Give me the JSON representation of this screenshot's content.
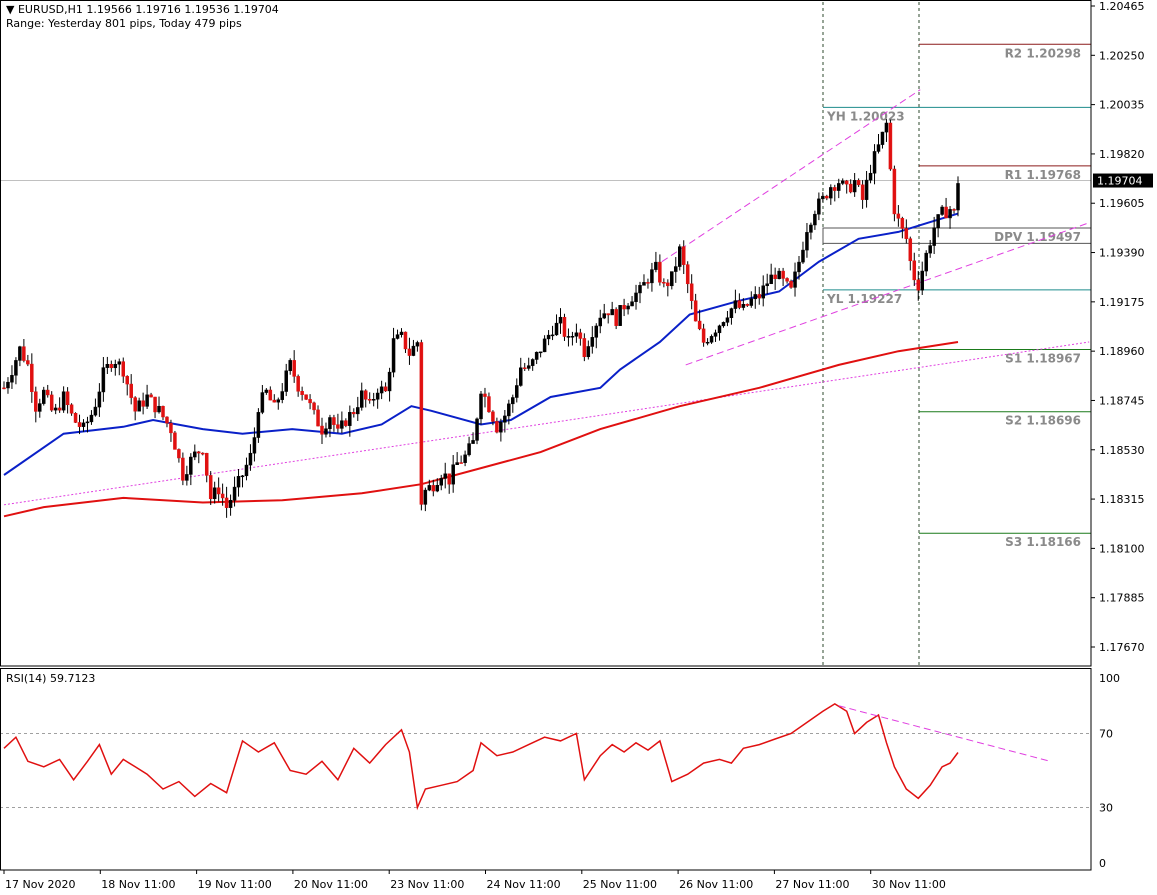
{
  "header": {
    "symbol_line": "▼ EURUSD,H1  1.19566 1.19716 1.19536 1.19704",
    "range_line": "Range: Yesterday 801 pips, Today 479 pips"
  },
  "rsi_label": "RSI(14) 59.7123",
  "chart_data": {
    "type": "candlestick",
    "price_axis": {
      "ticks": [
        "1.20465",
        "1.20250",
        "1.20035",
        "1.19820",
        "1.19605",
        "1.19390",
        "1.19175",
        "1.18960",
        "1.18745",
        "1.18530",
        "1.18315",
        "1.18100",
        "1.17885",
        "1.17670"
      ],
      "current_price": "1.19704",
      "ylim": [
        1.1755,
        1.205
      ]
    },
    "time_axis": {
      "labels": [
        "17 Nov 2020",
        "18 Nov 11:00",
        "19 Nov 11:00",
        "20 Nov 11:00",
        "23 Nov 11:00",
        "24 Nov 11:00",
        "25 Nov 11:00",
        "26 Nov 11:00",
        "27 Nov 11:00",
        "30 Nov 11:00"
      ]
    },
    "pivot_levels": [
      {
        "label": "R2 1.20298",
        "value": 1.20298,
        "color": "#8b1a1a"
      },
      {
        "label": "YH 1.20023",
        "value": 1.20023,
        "color": "#1e8c8c"
      },
      {
        "label": "R1 1.19768",
        "value": 1.19768,
        "color": "#8b1a1a"
      },
      {
        "label": "DPV 1.19497",
        "value": 1.19497,
        "color": "#b8a000"
      },
      {
        "label": "YL 1.19227",
        "value": 1.19227,
        "color": "#1e8c8c"
      },
      {
        "label": "S1 1.18967",
        "value": 1.18967,
        "color": "#1a7a1a"
      },
      {
        "label": "S2 1.18696",
        "value": 1.18696,
        "color": "#1a7a1a"
      },
      {
        "label": "S3 1.18166",
        "value": 1.18166,
        "color": "#1a7a1a"
      }
    ],
    "close_path": [
      [
        0,
        1.188
      ],
      [
        4,
        1.1888
      ],
      [
        8,
        1.1897
      ],
      [
        12,
        1.189
      ],
      [
        16,
        1.1872
      ],
      [
        20,
        1.1878
      ],
      [
        25,
        1.1868
      ],
      [
        30,
        1.1876
      ],
      [
        35,
        1.1866
      ],
      [
        40,
        1.1862
      ],
      [
        45,
        1.187
      ],
      [
        50,
        1.1886
      ],
      [
        55,
        1.1893
      ],
      [
        60,
        1.1888
      ],
      [
        66,
        1.187
      ],
      [
        72,
        1.1876
      ],
      [
        78,
        1.187
      ],
      [
        84,
        1.1862
      ],
      [
        90,
        1.1842
      ],
      [
        95,
        1.185
      ],
      [
        100,
        1.1854
      ],
      [
        104,
        1.1832
      ],
      [
        108,
        1.1836
      ],
      [
        112,
        1.1828
      ],
      [
        116,
        1.1835
      ],
      [
        120,
        1.1842
      ],
      [
        125,
        1.1852
      ],
      [
        128,
        1.1872
      ],
      [
        132,
        1.1878
      ],
      [
        136,
        1.1871
      ],
      [
        140,
        1.188
      ],
      [
        144,
        1.189
      ],
      [
        148,
        1.1881
      ],
      [
        152,
        1.1876
      ],
      [
        156,
        1.1868
      ],
      [
        160,
        1.1862
      ],
      [
        164,
        1.1868
      ],
      [
        168,
        1.186
      ],
      [
        172,
        1.1866
      ],
      [
        176,
        1.187
      ],
      [
        180,
        1.1877
      ],
      [
        184,
        1.1872
      ],
      [
        188,
        1.188
      ],
      [
        192,
        1.1878
      ],
      [
        196,
        1.19
      ],
      [
        200,
        1.1902
      ],
      [
        204,
        1.1895
      ],
      [
        208,
        1.19
      ],
      [
        209,
        1.1828
      ],
      [
        212,
        1.1835
      ],
      [
        216,
        1.1838
      ],
      [
        220,
        1.1843
      ],
      [
        224,
        1.184
      ],
      [
        228,
        1.1847
      ],
      [
        232,
        1.185
      ],
      [
        236,
        1.1856
      ],
      [
        240,
        1.188
      ],
      [
        244,
        1.1872
      ],
      [
        248,
        1.1863
      ],
      [
        252,
        1.1868
      ],
      [
        256,
        1.1876
      ],
      [
        260,
        1.1889
      ],
      [
        264,
        1.1888
      ],
      [
        268,
        1.1894
      ],
      [
        272,
        1.19
      ],
      [
        276,
        1.1906
      ],
      [
        280,
        1.1908
      ],
      [
        284,
        1.19
      ],
      [
        288,
        1.1906
      ],
      [
        292,
        1.1896
      ],
      [
        296,
        1.1905
      ],
      [
        300,
        1.1912
      ],
      [
        304,
        1.1914
      ],
      [
        308,
        1.191
      ],
      [
        312,
        1.1916
      ],
      [
        316,
        1.192
      ],
      [
        320,
        1.1922
      ],
      [
        324,
        1.1928
      ],
      [
        328,
        1.1932
      ],
      [
        332,
        1.1924
      ],
      [
        336,
        1.1928
      ],
      [
        340,
        1.194
      ],
      [
        344,
        1.1925
      ],
      [
        348,
        1.1908
      ],
      [
        352,
        1.19
      ],
      [
        356,
        1.1904
      ],
      [
        360,
        1.1908
      ],
      [
        364,
        1.1913
      ],
      [
        368,
        1.1916
      ],
      [
        372,
        1.1914
      ],
      [
        376,
        1.1918
      ],
      [
        380,
        1.192
      ],
      [
        384,
        1.1926
      ],
      [
        388,
        1.193
      ],
      [
        392,
        1.1926
      ],
      [
        396,
        1.1922
      ],
      [
        400,
        1.1935
      ],
      [
        404,
        1.195
      ],
      [
        408,
        1.1958
      ],
      [
        412,
        1.1962
      ],
      [
        416,
        1.1968
      ],
      [
        420,
        1.197
      ],
      [
        424,
        1.1966
      ],
      [
        428,
        1.197
      ],
      [
        432,
        1.1962
      ],
      [
        436,
        1.1976
      ],
      [
        440,
        1.1985
      ],
      [
        444,
        1.1995
      ],
      [
        446,
        1.1975
      ],
      [
        448,
        1.1958
      ],
      [
        451,
        1.195
      ],
      [
        454,
        1.1945
      ],
      [
        457,
        1.193
      ],
      [
        460,
        1.1925
      ],
      [
        464,
        1.1938
      ],
      [
        468,
        1.195
      ],
      [
        472,
        1.1956
      ],
      [
        476,
        1.1958
      ],
      [
        478,
        1.1956
      ],
      [
        480,
        1.19704
      ]
    ],
    "moving_averages": [
      {
        "color": "#0a20c8",
        "path": [
          [
            0,
            1.1842
          ],
          [
            30,
            1.186
          ],
          [
            60,
            1.1863
          ],
          [
            75,
            1.1866
          ],
          [
            100,
            1.1862
          ],
          [
            120,
            1.186
          ],
          [
            145,
            1.1862
          ],
          [
            170,
            1.186
          ],
          [
            190,
            1.1864
          ],
          [
            205,
            1.1872
          ],
          [
            215,
            1.187
          ],
          [
            240,
            1.1864
          ],
          [
            255,
            1.1866
          ],
          [
            275,
            1.1876
          ],
          [
            300,
            1.188
          ],
          [
            310,
            1.1888
          ],
          [
            330,
            1.19
          ],
          [
            345,
            1.1912
          ],
          [
            370,
            1.1918
          ],
          [
            390,
            1.1922
          ],
          [
            410,
            1.1935
          ],
          [
            430,
            1.1945
          ],
          [
            450,
            1.1948
          ],
          [
            465,
            1.1952
          ],
          [
            480,
            1.1956
          ]
        ]
      },
      {
        "color": "#e01010",
        "path": [
          [
            0,
            1.1824
          ],
          [
            20,
            1.1828
          ],
          [
            60,
            1.1832
          ],
          [
            100,
            1.183
          ],
          [
            140,
            1.1831
          ],
          [
            180,
            1.1834
          ],
          [
            210,
            1.1838
          ],
          [
            240,
            1.1845
          ],
          [
            270,
            1.1852
          ],
          [
            300,
            1.1862
          ],
          [
            340,
            1.1872
          ],
          [
            380,
            1.188
          ],
          [
            420,
            1.189
          ],
          [
            450,
            1.1896
          ],
          [
            480,
            1.19
          ]
        ]
      }
    ],
    "rsi": {
      "name": "RSI(14)",
      "value": 59.7123,
      "levels": [
        30,
        70
      ],
      "ticks": [
        "100",
        "70",
        "30",
        "0"
      ],
      "values": [
        [
          0,
          62
        ],
        [
          6,
          68
        ],
        [
          12,
          55
        ],
        [
          20,
          52
        ],
        [
          28,
          56
        ],
        [
          35,
          45
        ],
        [
          42,
          55
        ],
        [
          48,
          64
        ],
        [
          54,
          48
        ],
        [
          60,
          56
        ],
        [
          66,
          52
        ],
        [
          72,
          48
        ],
        [
          80,
          40
        ],
        [
          88,
          44
        ],
        [
          96,
          36
        ],
        [
          104,
          43
        ],
        [
          112,
          38
        ],
        [
          120,
          66
        ],
        [
          128,
          60
        ],
        [
          136,
          65
        ],
        [
          144,
          50
        ],
        [
          152,
          48
        ],
        [
          160,
          55
        ],
        [
          168,
          45
        ],
        [
          176,
          62
        ],
        [
          184,
          54
        ],
        [
          192,
          64
        ],
        [
          200,
          72
        ],
        [
          204,
          60
        ],
        [
          208,
          30
        ],
        [
          212,
          40
        ],
        [
          220,
          42
        ],
        [
          228,
          44
        ],
        [
          236,
          50
        ],
        [
          240,
          65
        ],
        [
          248,
          58
        ],
        [
          256,
          60
        ],
        [
          264,
          64
        ],
        [
          272,
          68
        ],
        [
          280,
          66
        ],
        [
          288,
          70
        ],
        [
          292,
          45
        ],
        [
          300,
          58
        ],
        [
          306,
          64
        ],
        [
          312,
          60
        ],
        [
          318,
          65
        ],
        [
          324,
          61
        ],
        [
          330,
          66
        ],
        [
          336,
          44
        ],
        [
          344,
          48
        ],
        [
          352,
          54
        ],
        [
          360,
          56
        ],
        [
          366,
          54
        ],
        [
          372,
          62
        ],
        [
          380,
          64
        ],
        [
          388,
          67
        ],
        [
          396,
          70
        ],
        [
          404,
          76
        ],
        [
          412,
          82
        ],
        [
          418,
          86
        ],
        [
          424,
          82
        ],
        [
          428,
          70
        ],
        [
          434,
          76
        ],
        [
          440,
          80
        ],
        [
          444,
          65
        ],
        [
          448,
          52
        ],
        [
          454,
          40
        ],
        [
          460,
          35
        ],
        [
          466,
          42
        ],
        [
          472,
          52
        ],
        [
          476,
          54
        ],
        [
          480,
          59.71
        ]
      ]
    }
  }
}
